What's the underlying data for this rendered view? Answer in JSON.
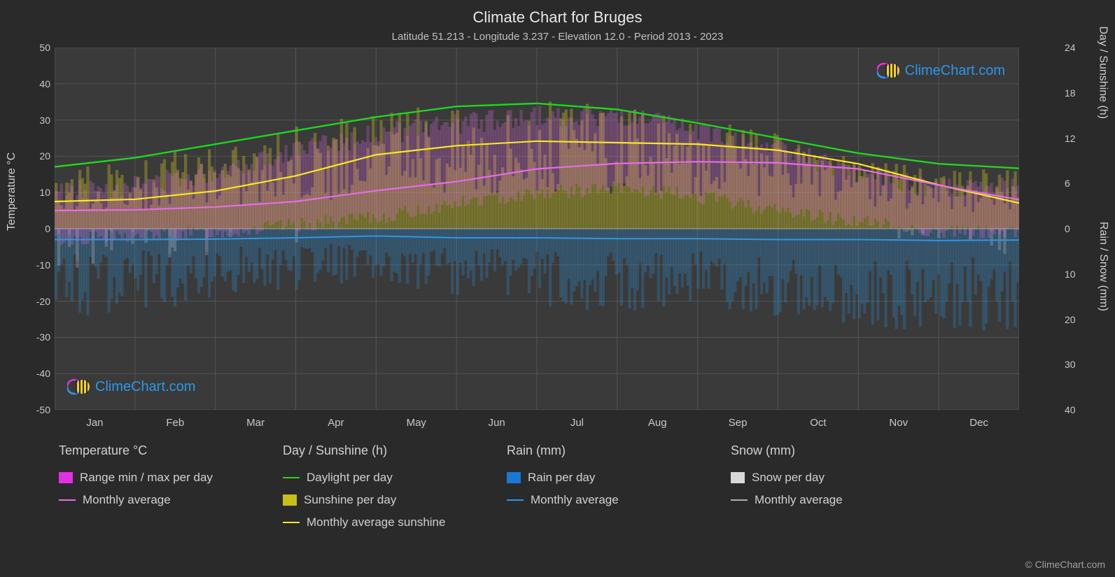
{
  "title": "Climate Chart for Bruges",
  "subtitle": "Latitude 51.213 - Longitude 3.237 - Elevation 12.0 - Period 2013 - 2023",
  "copyright": "© ClimeChart.com",
  "watermark_text": "ClimeChart.com",
  "chart": {
    "type": "climate-composite",
    "background_color": "#2a2a2a",
    "plot_background_color": "#3a3a3a",
    "grid_color": "#555555",
    "border_color": "#888888",
    "text_color": "#d0d0d0",
    "title_fontsize": 22,
    "subtitle_fontsize": 15,
    "tick_fontsize": 14,
    "x_categories": [
      "Jan",
      "Feb",
      "Mar",
      "Apr",
      "May",
      "Jun",
      "Jul",
      "Aug",
      "Sep",
      "Oct",
      "Nov",
      "Dec"
    ],
    "y_left": {
      "label": "Temperature °C",
      "min": -50,
      "max": 50,
      "step": 10
    },
    "y_right_top": {
      "label": "Day / Sunshine (h)",
      "min": 0,
      "max": 24,
      "step": 6
    },
    "y_right_bot": {
      "label": "Rain / Snow (mm)",
      "min": 0,
      "max": 40,
      "step": 10
    },
    "series": {
      "daylight_line": {
        "type": "line",
        "axis": "right_top",
        "color": "#1fd51f",
        "width": 2.4,
        "values": [
          8.2,
          9.4,
          11.2,
          13.0,
          14.8,
          16.2,
          16.6,
          15.8,
          14.0,
          12.0,
          10.0,
          8.6,
          8.0
        ]
      },
      "sunshine_avg_line": {
        "type": "line",
        "axis": "right_top",
        "color": "#f5e820",
        "width": 2.2,
        "values": [
          3.6,
          3.9,
          5.0,
          7.0,
          9.8,
          11.0,
          11.6,
          11.4,
          11.2,
          10.4,
          8.6,
          5.8,
          3.4
        ]
      },
      "temp_avg_line": {
        "type": "line",
        "axis": "left",
        "color": "#e86be8",
        "width": 2.2,
        "values": [
          5.0,
          5.2,
          6.0,
          7.5,
          10.5,
          13.0,
          16.5,
          18.0,
          18.5,
          18.2,
          16.5,
          12.0,
          8.0
        ]
      },
      "rain_avg_line": {
        "type": "line",
        "axis": "right_bot",
        "color": "#2a98e8",
        "width": 2.0,
        "values": [
          2.4,
          2.4,
          2.3,
          2.0,
          1.6,
          2.0,
          2.0,
          2.2,
          2.2,
          2.4,
          2.4,
          2.6,
          2.5
        ]
      },
      "temp_range_bars": {
        "type": "daily-bars",
        "axis": "left",
        "color": "#e86be8",
        "opacity": 0.25,
        "min": [
          -3,
          -2,
          -1,
          1,
          3,
          7,
          10,
          11,
          9,
          5,
          2,
          -1
        ],
        "max": [
          10,
          12,
          16,
          22,
          26,
          29,
          31,
          31,
          27,
          22,
          15,
          11
        ]
      },
      "sunshine_bars": {
        "type": "daily-bars",
        "axis": "right_top",
        "color": "#d2c81e",
        "opacity": 0.35,
        "min": [
          0,
          0,
          0,
          0,
          0,
          0,
          0,
          0,
          0,
          0,
          0,
          0
        ],
        "max": [
          7,
          8,
          10,
          12,
          14,
          15,
          15,
          14,
          13,
          11,
          8,
          7
        ]
      },
      "rain_bars": {
        "type": "daily-bars",
        "axis": "right_bot",
        "color": "#2a98e8",
        "opacity": 0.25,
        "min": [
          0,
          0,
          0,
          0,
          0,
          0,
          0,
          0,
          0,
          0,
          0,
          0
        ],
        "max": [
          18,
          16,
          14,
          12,
          10,
          14,
          15,
          16,
          15,
          17,
          19,
          20
        ]
      },
      "snow_bars": {
        "type": "daily-bars",
        "axis": "right_bot",
        "color": "#d0d0d0",
        "opacity": 0.25,
        "min": [
          0,
          0,
          0,
          0,
          0,
          0,
          0,
          0,
          0,
          0,
          0,
          0
        ],
        "max": [
          8,
          6,
          3,
          0,
          0,
          0,
          0,
          0,
          0,
          0,
          2,
          5
        ]
      }
    }
  },
  "legend": {
    "columns": [
      {
        "header": "Temperature °C",
        "items": [
          {
            "kind": "box",
            "color": "#e032e0",
            "label": "Range min / max per day"
          },
          {
            "kind": "line",
            "color": "#e86be8",
            "label": "Monthly average"
          }
        ]
      },
      {
        "header": "Day / Sunshine (h)",
        "items": [
          {
            "kind": "line",
            "color": "#1fd51f",
            "label": "Daylight per day"
          },
          {
            "kind": "box",
            "color": "#c8be1a",
            "label": "Sunshine per day"
          },
          {
            "kind": "line",
            "color": "#f5e820",
            "label": "Monthly average sunshine"
          }
        ]
      },
      {
        "header": "Rain (mm)",
        "items": [
          {
            "kind": "box",
            "color": "#1a78d0",
            "label": "Rain per day"
          },
          {
            "kind": "line",
            "color": "#2a98e8",
            "label": "Monthly average"
          }
        ]
      },
      {
        "header": "Snow (mm)",
        "items": [
          {
            "kind": "box",
            "color": "#d8d8d8",
            "label": "Snow per day"
          },
          {
            "kind": "line",
            "color": "#b0b0b0",
            "label": "Monthly average"
          }
        ]
      }
    ]
  }
}
